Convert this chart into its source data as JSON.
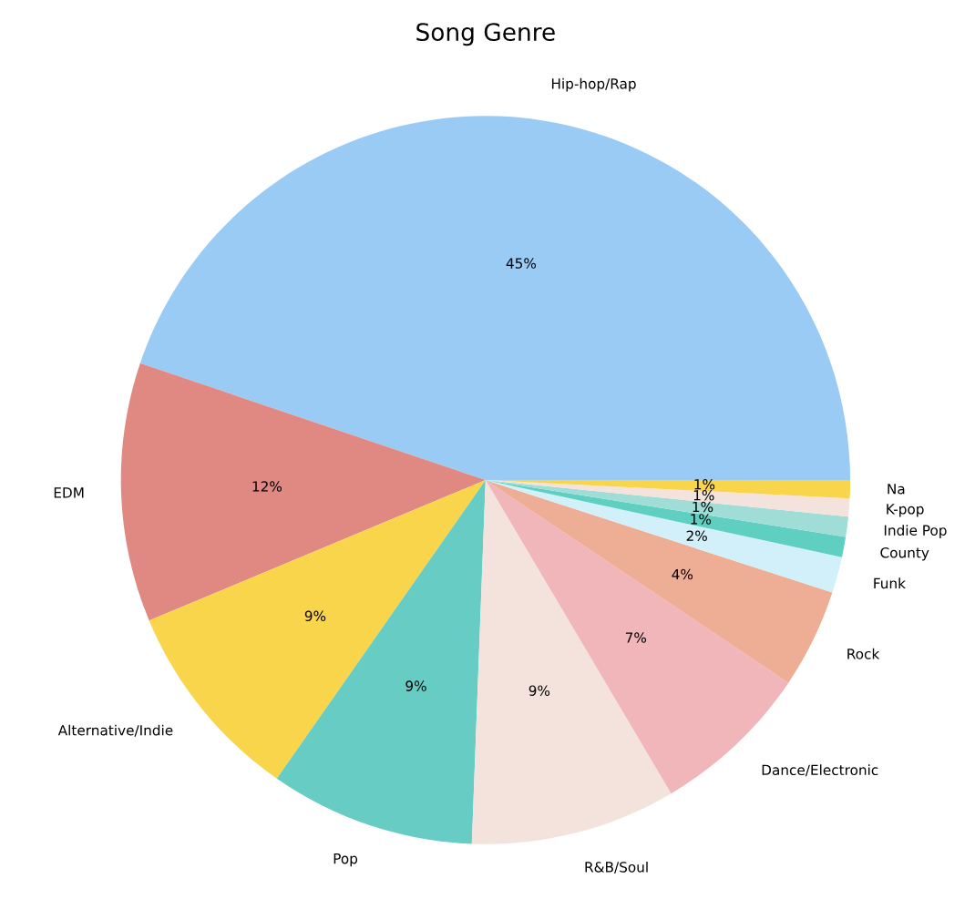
{
  "chart_data": {
    "type": "pie",
    "title": "Song Genre",
    "categories": [
      "Hip-hop/Rap",
      "EDM",
      "Alternative/Indie",
      "Pop",
      "R&B/Soul",
      "Dance/Electronic",
      "Rock",
      "Funk",
      "County",
      "Indie Pop",
      "K-pop",
      "Na"
    ],
    "values": [
      44.8,
      11.5,
      9.0,
      9.1,
      9.1,
      7.1,
      4.4,
      1.6,
      0.9,
      0.9,
      0.8,
      0.8
    ],
    "value_labels": [
      "45%",
      "12%",
      "9%",
      "9%",
      "9%",
      "7%",
      "4%",
      "2%",
      "1%",
      "1%",
      "1%",
      "1%"
    ],
    "colors": [
      "#99cbf5",
      "#e08882",
      "#f8d54b",
      "#66ccc4",
      "#f4e3dc",
      "#f1b6b9",
      "#eeae95",
      "#d2f0fa",
      "#5fcfc2",
      "#a0ddd6",
      "#f4e3dc",
      "#f8d54b"
    ]
  }
}
